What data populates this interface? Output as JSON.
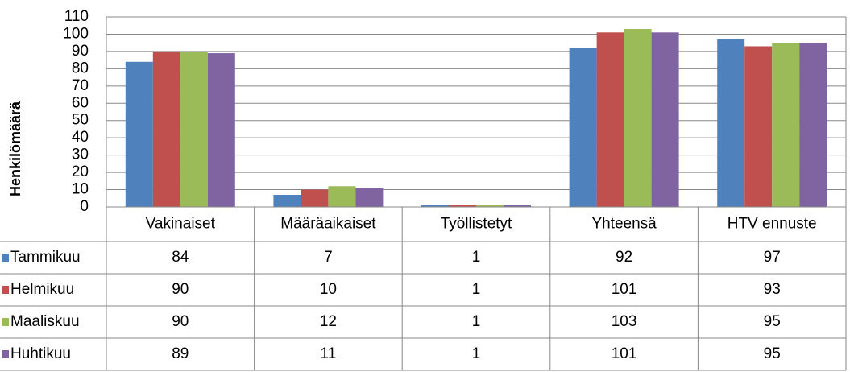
{
  "chart_data": {
    "type": "bar",
    "y_label": "Henkilömäärä",
    "categories": [
      "Vakinaiset",
      "Määräaikaiset",
      "Työllistetyt",
      "Yhteensä",
      "HTV ennuste"
    ],
    "series": [
      {
        "name": "Tammikuu",
        "color": "#4f81bd",
        "values": [
          84,
          7,
          1,
          92,
          97
        ]
      },
      {
        "name": "Helmikuu",
        "color": "#c0504d",
        "values": [
          90,
          10,
          1,
          101,
          93
        ]
      },
      {
        "name": "Maaliskuu",
        "color": "#9bbb59",
        "values": [
          90,
          12,
          1,
          103,
          95
        ]
      },
      {
        "name": "Huhtikuu",
        "color": "#8064a2",
        "values": [
          89,
          11,
          1,
          101,
          95
        ]
      }
    ],
    "ylim": [
      0,
      110
    ],
    "yticks": [
      0,
      10,
      20,
      30,
      40,
      50,
      60,
      70,
      80,
      90,
      100,
      110
    ],
    "grid": true,
    "data_table": true
  }
}
